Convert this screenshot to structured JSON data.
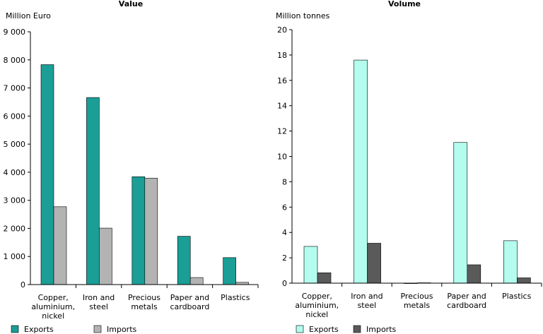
{
  "chart_data": [
    {
      "type": "bar",
      "title": "Value",
      "ylabel": "Million Euro",
      "ylim": [
        0,
        9000
      ],
      "yticks": [
        "0",
        "1 000",
        "2 000",
        "3 000",
        "4 000",
        "5 000",
        "6 000",
        "7 000",
        "8 000",
        "9 000"
      ],
      "categories": [
        [
          "Copper,",
          "aluminium,",
          "nickel"
        ],
        [
          "Iron and",
          "steel"
        ],
        [
          "Precious",
          "metals"
        ],
        [
          "Paper and",
          "cardboard"
        ],
        [
          "Plastics"
        ]
      ],
      "series": [
        {
          "name": "Exports",
          "color": "#1a9e96",
          "values": [
            7830,
            6660,
            3840,
            1720,
            960
          ]
        },
        {
          "name": "Imports",
          "color": "#b3b3b3",
          "values": [
            2770,
            2010,
            3790,
            250,
            80
          ]
        }
      ],
      "legend_position": "bottom"
    },
    {
      "type": "bar",
      "title": "Volume",
      "ylabel": "Million tonnes",
      "ylim": [
        0,
        20
      ],
      "yticks": [
        "0",
        "2",
        "4",
        "6",
        "8",
        "10",
        "12",
        "14",
        "16",
        "18",
        "20"
      ],
      "categories": [
        [
          "Copper,",
          "aluminium,",
          "nickel"
        ],
        [
          "Iron and",
          "steel"
        ],
        [
          "Precious",
          "metals"
        ],
        [
          "Paper and",
          "cardboard"
        ],
        [
          "Plastics"
        ]
      ],
      "series": [
        {
          "name": "Exports",
          "color": "#b3fcee",
          "values": [
            2.9,
            17.6,
            0.0,
            11.1,
            3.35
          ]
        },
        {
          "name": "Imports",
          "color": "#5a5a5a",
          "values": [
            0.82,
            3.15,
            0.03,
            1.45,
            0.42
          ]
        }
      ],
      "legend_position": "bottom"
    }
  ]
}
